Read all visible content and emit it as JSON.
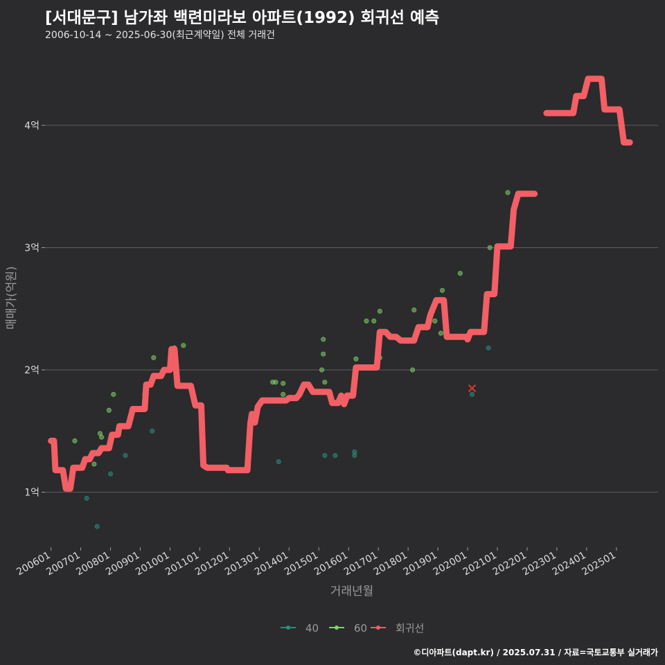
{
  "header": {
    "title": "[서대문구] 남가좌 백련미라보 아파트(1992) 회귀선 예측",
    "subtitle": "2006-10-14 ~ 2025-06-30(최근계약일) 전체 거래건"
  },
  "footer": {
    "credit": "©디아파트(dapt.kr) / 2025.07.31 / 자료=국토교통부 실거래가"
  },
  "colors": {
    "background": "#2b2a2c",
    "grid": "#5e5e5e",
    "series_40": "#2a8f80",
    "series_60": "#7fd36b",
    "regression": "#f25f64",
    "outlier": "#e03333"
  },
  "chart_data": {
    "type": "scatter",
    "xlabel": "거래년월",
    "ylabel": "매매가(억원)",
    "xlim": [
      2005.8,
      2026.4
    ],
    "ylim": [
      0.55,
      4.6
    ],
    "y_ticks": [
      {
        "value": 1,
        "label": "1억"
      },
      {
        "value": 2,
        "label": "2억"
      },
      {
        "value": 3,
        "label": "3억"
      },
      {
        "value": 4,
        "label": "4억"
      }
    ],
    "x_ticks": [
      {
        "value": 2006,
        "label": "200601"
      },
      {
        "value": 2007,
        "label": "200701"
      },
      {
        "value": 2008,
        "label": "200801"
      },
      {
        "value": 2009,
        "label": "200901"
      },
      {
        "value": 2010,
        "label": "201001"
      },
      {
        "value": 2011,
        "label": "201101"
      },
      {
        "value": 2012,
        "label": "201201"
      },
      {
        "value": 2013,
        "label": "201301"
      },
      {
        "value": 2014,
        "label": "201401"
      },
      {
        "value": 2015,
        "label": "201501"
      },
      {
        "value": 2016,
        "label": "201601"
      },
      {
        "value": 2017,
        "label": "201701"
      },
      {
        "value": 2018,
        "label": "201801"
      },
      {
        "value": 2019,
        "label": "201901"
      },
      {
        "value": 2020,
        "label": "202001"
      },
      {
        "value": 2021,
        "label": "202101"
      },
      {
        "value": 2022,
        "label": "202201"
      },
      {
        "value": 2023,
        "label": "202301"
      },
      {
        "value": 2024,
        "label": "202401"
      },
      {
        "value": 2025,
        "label": "202501"
      }
    ],
    "legend": {
      "position": "bottom",
      "items": [
        {
          "key": "40",
          "label": "40"
        },
        {
          "key": "60",
          "label": "60"
        },
        {
          "key": "reg",
          "label": "회귀선"
        }
      ]
    },
    "series": [
      {
        "name": "40",
        "points": [
          [
            2007.2,
            0.95
          ],
          [
            2007.55,
            0.72
          ],
          [
            2008.0,
            1.15
          ],
          [
            2008.5,
            1.3
          ],
          [
            2009.4,
            1.5
          ],
          [
            2013.65,
            1.25
          ],
          [
            2015.2,
            1.3
          ],
          [
            2015.55,
            1.3
          ],
          [
            2016.2,
            1.3
          ],
          [
            2016.2,
            1.33
          ],
          [
            2020.15,
            1.8
          ],
          [
            2020.7,
            2.18
          ]
        ]
      },
      {
        "name": "60",
        "points": [
          [
            2006.8,
            1.42
          ],
          [
            2007.45,
            1.23
          ],
          [
            2007.65,
            1.48
          ],
          [
            2007.7,
            1.45
          ],
          [
            2007.95,
            1.67
          ],
          [
            2008.1,
            1.8
          ],
          [
            2009.15,
            1.8
          ],
          [
            2009.45,
            2.1
          ],
          [
            2010.15,
            2.18
          ],
          [
            2010.45,
            2.2
          ],
          [
            2013.45,
            1.9
          ],
          [
            2013.55,
            1.9
          ],
          [
            2013.8,
            1.89
          ],
          [
            2013.8,
            1.8
          ],
          [
            2015.1,
            2.0
          ],
          [
            2015.15,
            2.13
          ],
          [
            2015.15,
            2.25
          ],
          [
            2015.2,
            1.9
          ],
          [
            2016.25,
            2.09
          ],
          [
            2016.6,
            2.4
          ],
          [
            2016.85,
            2.4
          ],
          [
            2017.05,
            2.48
          ],
          [
            2017.05,
            2.1
          ],
          [
            2018.15,
            2.0
          ],
          [
            2018.2,
            2.49
          ],
          [
            2018.9,
            2.4
          ],
          [
            2019.1,
            2.3
          ],
          [
            2019.15,
            2.65
          ],
          [
            2019.75,
            2.79
          ],
          [
            2020.75,
            3.0
          ],
          [
            2021.35,
            3.45
          ]
        ]
      }
    ],
    "outliers": [
      [
        2020.15,
        1.85
      ]
    ],
    "regression": [
      [
        2006.0,
        1.42
      ],
      [
        2006.1,
        1.42
      ],
      [
        2006.15,
        1.18
      ],
      [
        2006.4,
        1.18
      ],
      [
        2006.5,
        1.03
      ],
      [
        2006.65,
        1.03
      ],
      [
        2006.75,
        1.2
      ],
      [
        2007.05,
        1.2
      ],
      [
        2007.15,
        1.27
      ],
      [
        2007.3,
        1.27
      ],
      [
        2007.4,
        1.32
      ],
      [
        2007.6,
        1.32
      ],
      [
        2007.7,
        1.36
      ],
      [
        2007.95,
        1.36
      ],
      [
        2008.05,
        1.47
      ],
      [
        2008.25,
        1.47
      ],
      [
        2008.3,
        1.54
      ],
      [
        2008.6,
        1.54
      ],
      [
        2008.75,
        1.68
      ],
      [
        2009.15,
        1.68
      ],
      [
        2009.2,
        1.88
      ],
      [
        2009.35,
        1.88
      ],
      [
        2009.45,
        1.95
      ],
      [
        2009.7,
        1.95
      ],
      [
        2009.8,
        2.0
      ],
      [
        2010.0,
        2.0
      ],
      [
        2010.05,
        2.17
      ],
      [
        2010.15,
        2.17
      ],
      [
        2010.25,
        1.87
      ],
      [
        2010.7,
        1.87
      ],
      [
        2010.85,
        1.71
      ],
      [
        2011.05,
        1.71
      ],
      [
        2011.12,
        1.22
      ],
      [
        2011.25,
        1.2
      ],
      [
        2011.9,
        1.2
      ],
      [
        2011.95,
        1.18
      ],
      [
        2012.6,
        1.18
      ],
      [
        2012.7,
        1.56
      ],
      [
        2012.75,
        1.64
      ],
      [
        2012.85,
        1.57
      ],
      [
        2012.95,
        1.7
      ],
      [
        2013.1,
        1.75
      ],
      [
        2013.9,
        1.75
      ],
      [
        2014.0,
        1.77
      ],
      [
        2014.25,
        1.77
      ],
      [
        2014.35,
        1.8
      ],
      [
        2014.5,
        1.88
      ],
      [
        2014.65,
        1.88
      ],
      [
        2014.8,
        1.82
      ],
      [
        2015.35,
        1.82
      ],
      [
        2015.45,
        1.73
      ],
      [
        2015.65,
        1.73
      ],
      [
        2015.75,
        1.79
      ],
      [
        2015.85,
        1.72
      ],
      [
        2015.95,
        1.79
      ],
      [
        2016.15,
        1.79
      ],
      [
        2016.25,
        2.02
      ],
      [
        2016.95,
        2.02
      ],
      [
        2017.05,
        2.31
      ],
      [
        2017.25,
        2.31
      ],
      [
        2017.4,
        2.27
      ],
      [
        2017.6,
        2.27
      ],
      [
        2017.75,
        2.24
      ],
      [
        2018.2,
        2.24
      ],
      [
        2018.35,
        2.35
      ],
      [
        2018.65,
        2.35
      ],
      [
        2018.75,
        2.45
      ],
      [
        2018.95,
        2.57
      ],
      [
        2019.2,
        2.57
      ],
      [
        2019.3,
        2.27
      ],
      [
        2019.8,
        2.27
      ],
      [
        2019.95,
        2.27
      ],
      [
        2020.0,
        2.25
      ],
      [
        2020.1,
        2.31
      ],
      [
        2020.55,
        2.31
      ],
      [
        2020.65,
        2.62
      ],
      [
        2020.9,
        2.62
      ],
      [
        2021.0,
        3.01
      ],
      [
        2021.45,
        3.01
      ],
      [
        2021.55,
        3.31
      ],
      [
        2021.7,
        3.44
      ],
      [
        2022.25,
        3.44
      ]
    ],
    "regression_tail": [
      [
        2022.65,
        4.1
      ],
      [
        2023.55,
        4.1
      ],
      [
        2023.65,
        4.24
      ],
      [
        2023.9,
        4.24
      ],
      [
        2024.05,
        4.38
      ],
      [
        2024.5,
        4.38
      ],
      [
        2024.6,
        4.13
      ],
      [
        2025.1,
        4.13
      ],
      [
        2025.25,
        3.86
      ],
      [
        2025.45,
        3.86
      ]
    ]
  }
}
